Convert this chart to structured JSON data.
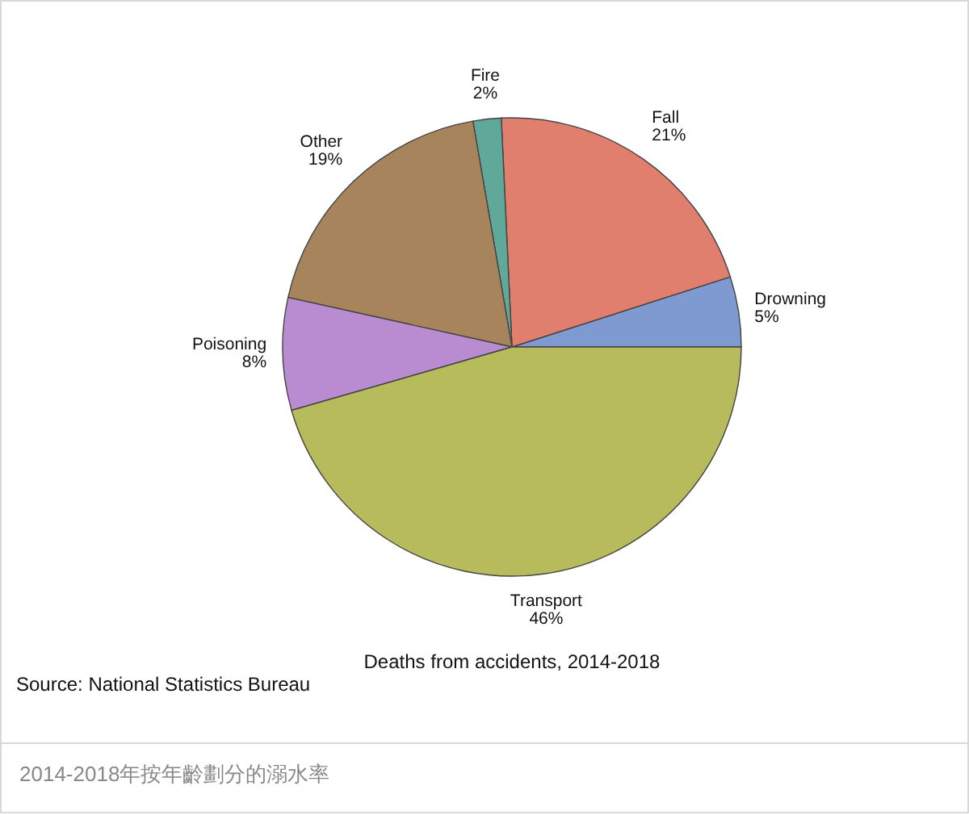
{
  "chart_data": {
    "type": "pie",
    "title": "Deaths from accidents, 2014-2018",
    "categories": [
      "Drowning",
      "Fall",
      "Fire",
      "Other",
      "Poisoning",
      "Transport"
    ],
    "values": [
      5,
      21,
      2,
      19,
      8,
      46
    ],
    "value_labels": [
      "5%",
      "21%",
      "2%",
      "19%",
      "8%",
      "46%"
    ],
    "colors": [
      "#7f9ad0",
      "#e07f6e",
      "#5fa89a",
      "#a8845c",
      "#b98bd0",
      "#b8bb5c"
    ],
    "annotations": [
      "Source: National Statistics Bureau",
      "2014-2018年按年齡劃分的溺水率"
    ]
  }
}
